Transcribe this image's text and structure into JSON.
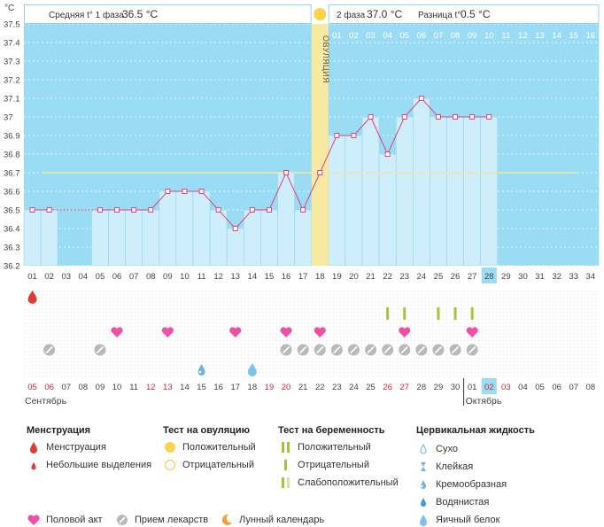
{
  "header": {
    "unit": "°C",
    "phase1_label": "Средняя t° 1 фаза",
    "phase1_value": "36.5 °C",
    "phase2_label": "2 фаза",
    "phase2_value": "37.0 °C",
    "diff_label": "Разница t°",
    "diff_value": "0.5 °C",
    "ovulation_label": "ОВУЛЯЦИЯ"
  },
  "colors": {
    "bar": "#cfeefc",
    "bar_border": "#8fd3f3",
    "bg_blue": "#9bdcf5",
    "line": "#e0457a",
    "ovulation": "#f7eaa0",
    "sun": "#f9d448",
    "coverline": "#f1e6a6",
    "grid": "#ffffff"
  },
  "chart_data": {
    "type": "line",
    "title": "",
    "ylim": [
      36.2,
      37.5
    ],
    "y_ticks": [
      "37.5",
      "37.4",
      "37.3",
      "37.2",
      "37.1",
      "37",
      "36.9",
      "36.8",
      "36.7",
      "36.6",
      "36.5",
      "36.4",
      "36.3",
      "36.2"
    ],
    "cycle_days": [
      "01",
      "02",
      "03",
      "04",
      "05",
      "06",
      "07",
      "08",
      "09",
      "10",
      "11",
      "12",
      "13",
      "14",
      "15",
      "16",
      "17",
      "18",
      "19",
      "20",
      "21",
      "22",
      "23",
      "24",
      "25",
      "26",
      "27",
      "28",
      "29",
      "30",
      "31",
      "32",
      "33",
      "34"
    ],
    "luteal_days": [
      "01",
      "02",
      "03",
      "04",
      "05",
      "06",
      "07",
      "08",
      "09",
      "10",
      "11",
      "12",
      "13",
      "14",
      "15",
      "16"
    ],
    "dates": [
      "05",
      "06",
      "07",
      "08",
      "09",
      "10",
      "11",
      "12",
      "13",
      "14",
      "15",
      "16",
      "17",
      "18",
      "19",
      "20",
      "21",
      "22",
      "23",
      "24",
      "25",
      "26",
      "27",
      "28",
      "29",
      "30",
      "01",
      "02",
      "03",
      "04",
      "05",
      "06",
      "07",
      "08"
    ],
    "red_date_indices": [
      0,
      1,
      7,
      8,
      14,
      15,
      21,
      22,
      27,
      28
    ],
    "highlight_day_index": 27,
    "highlight_date_index": 27,
    "month_left": "Сентябрь",
    "month_right": "Октябрь",
    "coverline": 36.7,
    "ovulation_day_index": 17,
    "series": [
      {
        "values": [
          36.5,
          36.5,
          null,
          null,
          36.5,
          36.5,
          36.5,
          36.5,
          36.6,
          36.6,
          36.6,
          36.5,
          36.4,
          36.5,
          36.5,
          36.7,
          36.5,
          36.7,
          36.9,
          36.9,
          37.0,
          36.8,
          37.0,
          37.1,
          37.0,
          37.0,
          37.0,
          37.0,
          null,
          null,
          null,
          null,
          null,
          null
        ]
      }
    ],
    "markers": {
      "menstruation": [
        0
      ],
      "preg_test_positive": [
        21,
        22,
        24,
        25,
        26
      ],
      "intercourse": [
        5,
        8,
        12,
        15,
        17,
        22,
        26
      ],
      "medication": [
        1,
        4,
        15,
        16,
        17,
        18,
        19,
        20,
        21,
        22,
        23,
        24,
        25,
        26
      ],
      "cervical_fluid_creamy": [
        10
      ],
      "cervical_fluid_eggwhite": [
        13
      ]
    }
  },
  "legend": {
    "menstruation": {
      "title": "Менструация",
      "items": [
        "Менструация",
        "Небольшие выделения"
      ]
    },
    "ovulation_test": {
      "title": "Тест на овуляцию",
      "items": [
        "Положительный",
        "Отрицательный"
      ]
    },
    "pregnancy_test": {
      "title": "Тест на беременность",
      "items": [
        "Положительный",
        "Отрицательный",
        "Слабоположительный"
      ]
    },
    "cervical_fluid": {
      "title": "Цервикальная жидкость",
      "items": [
        "Сухо",
        "Клейкая",
        "Кремообразная",
        "Водянистая",
        "Яичный белок"
      ]
    },
    "bottom": [
      "Половой акт",
      "Прием лекарств",
      "Лунный календарь"
    ]
  }
}
